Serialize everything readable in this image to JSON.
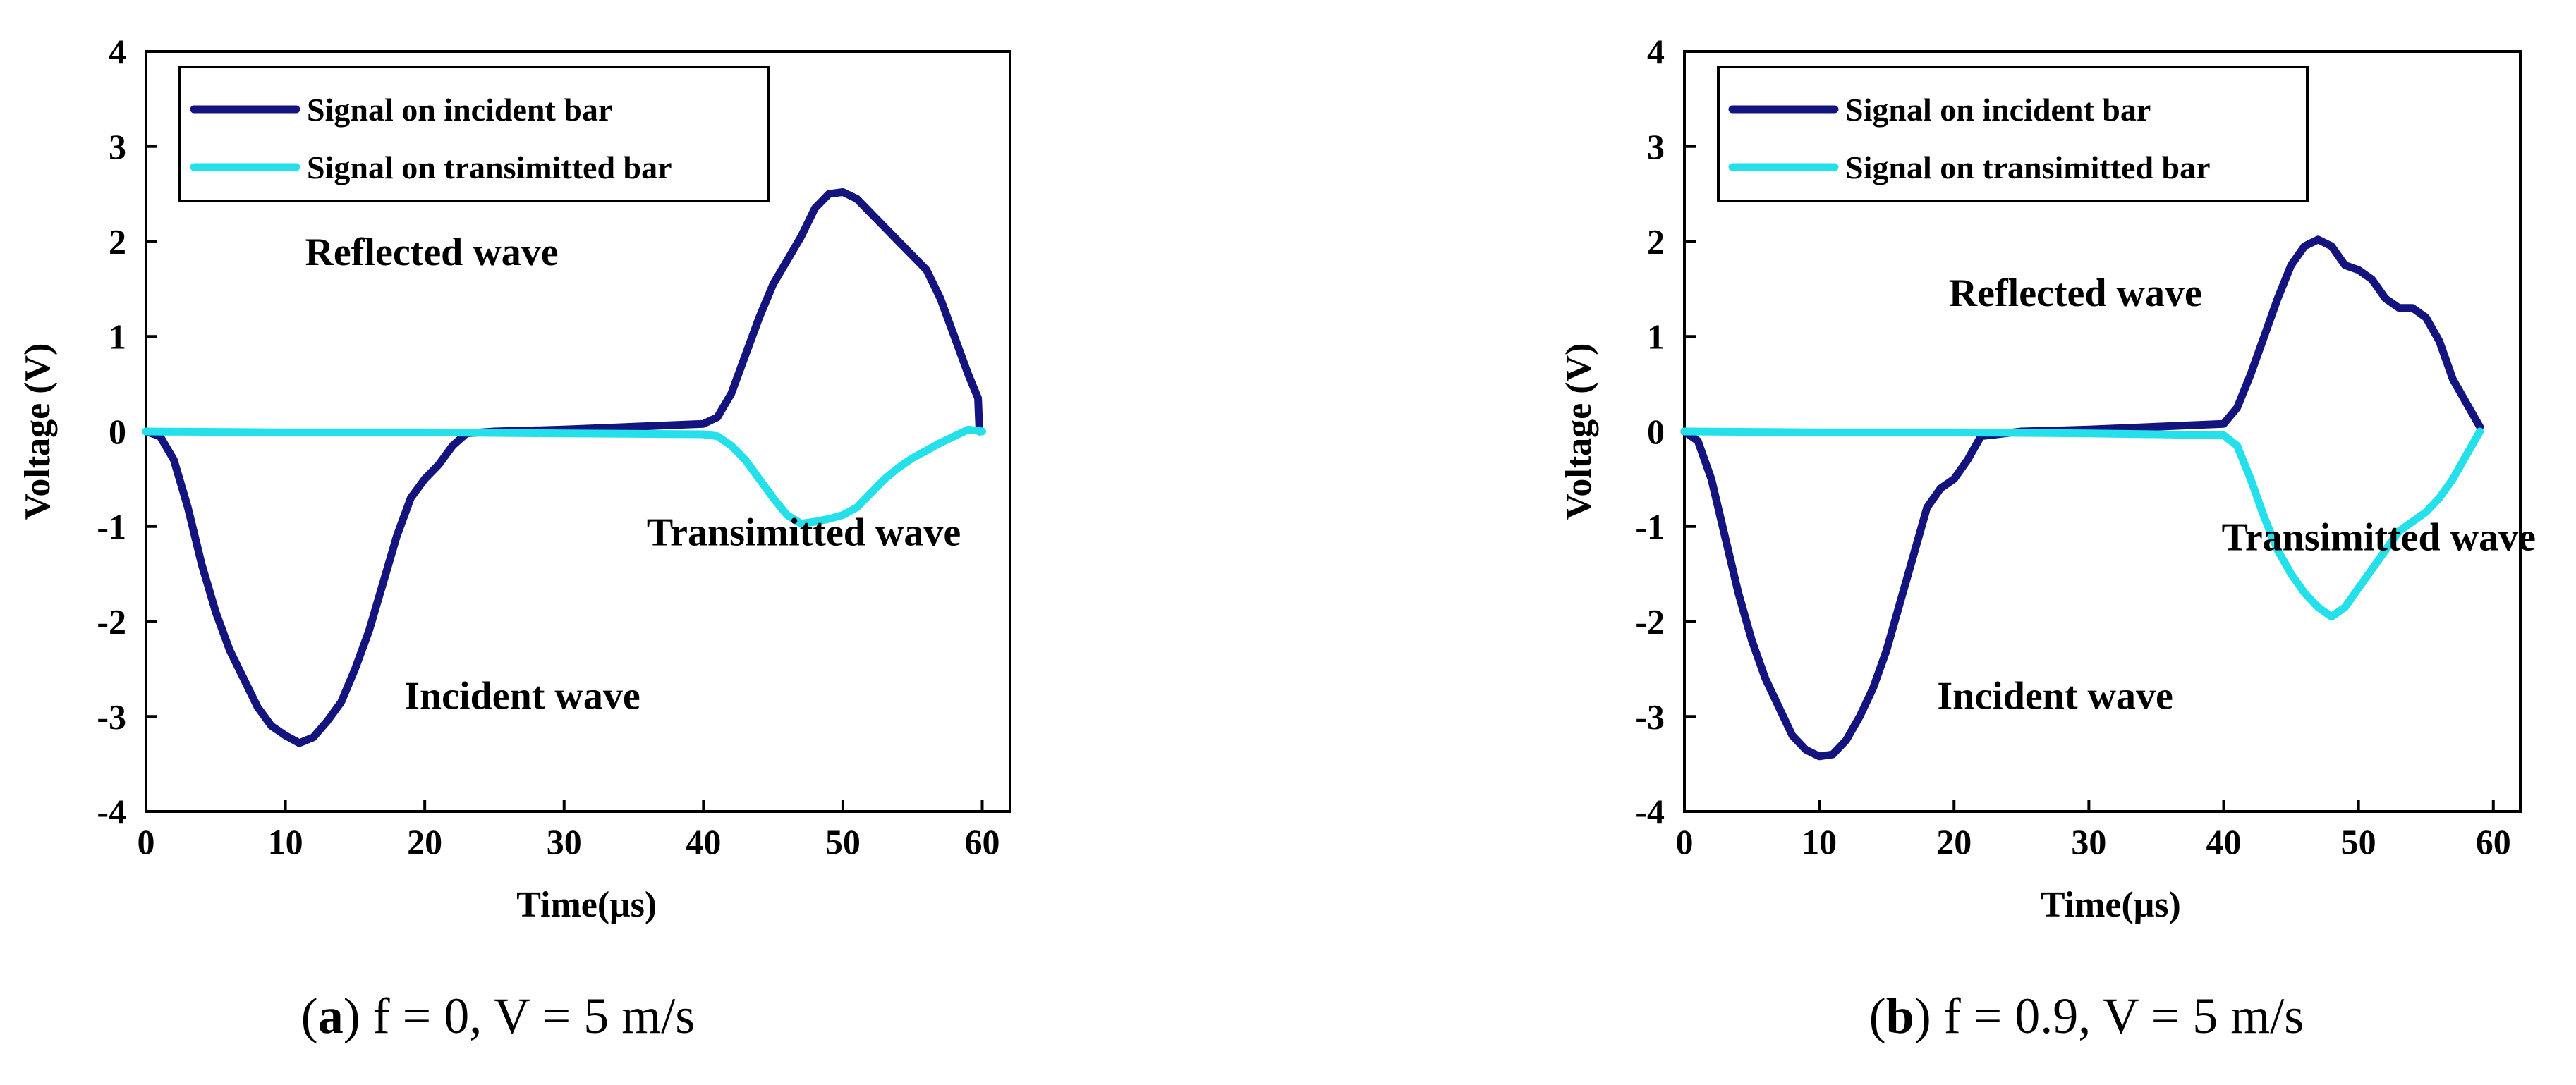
{
  "colors": {
    "incident": "#14147f",
    "transmitted": "#24e0ea",
    "axis": "#000000",
    "background": "#ffffff"
  },
  "chart_data": [
    {
      "id": "a",
      "type": "line",
      "xlabel": "Time(μs)",
      "ylabel": "Voltage (V)",
      "xlim": [
        0,
        62
      ],
      "ylim": [
        -4,
        4
      ],
      "xticks": [
        0,
        10,
        20,
        30,
        40,
        50,
        60
      ],
      "yticks": [
        -4,
        -3,
        -2,
        -1,
        0,
        1,
        2,
        3,
        4
      ],
      "legend_position": "top-left",
      "caption": {
        "open": "(",
        "letter": "a",
        "rest": ") f = 0, V = 5 m/s"
      },
      "series": [
        {
          "name": "Signal on incident bar",
          "color_key": "incident",
          "points": [
            [
              0,
              0
            ],
            [
              1,
              -0.05
            ],
            [
              2,
              -0.3
            ],
            [
              3,
              -0.8
            ],
            [
              4,
              -1.4
            ],
            [
              5,
              -1.9
            ],
            [
              6,
              -2.3
            ],
            [
              7,
              -2.6
            ],
            [
              8,
              -2.9
            ],
            [
              9,
              -3.1
            ],
            [
              10,
              -3.2
            ],
            [
              11,
              -3.28
            ],
            [
              12,
              -3.22
            ],
            [
              13,
              -3.05
            ],
            [
              14,
              -2.85
            ],
            [
              15,
              -2.5
            ],
            [
              16,
              -2.1
            ],
            [
              17,
              -1.6
            ],
            [
              18,
              -1.1
            ],
            [
              19,
              -0.7
            ],
            [
              20,
              -0.5
            ],
            [
              21,
              -0.35
            ],
            [
              22,
              -0.15
            ],
            [
              23,
              -0.02
            ],
            [
              25,
              0.0
            ],
            [
              30,
              0.02
            ],
            [
              35,
              0.05
            ],
            [
              40,
              0.08
            ],
            [
              41,
              0.15
            ],
            [
              42,
              0.4
            ],
            [
              43,
              0.8
            ],
            [
              44,
              1.2
            ],
            [
              45,
              1.55
            ],
            [
              46,
              1.8
            ],
            [
              47,
              2.05
            ],
            [
              48,
              2.35
            ],
            [
              49,
              2.5
            ],
            [
              50,
              2.52
            ],
            [
              51,
              2.45
            ],
            [
              52,
              2.3
            ],
            [
              53,
              2.15
            ],
            [
              54,
              2.0
            ],
            [
              55,
              1.85
            ],
            [
              56,
              1.7
            ],
            [
              57,
              1.4
            ],
            [
              58,
              1.0
            ],
            [
              59,
              0.6
            ],
            [
              59.7,
              0.35
            ],
            [
              59.8,
              0.0
            ]
          ]
        },
        {
          "name": "Signal on transimitted bar",
          "color_key": "transmitted",
          "points": [
            [
              0,
              0
            ],
            [
              10,
              -0.01
            ],
            [
              20,
              -0.01
            ],
            [
              30,
              -0.02
            ],
            [
              40,
              -0.03
            ],
            [
              41,
              -0.05
            ],
            [
              42,
              -0.15
            ],
            [
              43,
              -0.3
            ],
            [
              44,
              -0.5
            ],
            [
              45,
              -0.7
            ],
            [
              46,
              -0.88
            ],
            [
              47,
              -0.97
            ],
            [
              48,
              -0.95
            ],
            [
              49,
              -0.92
            ],
            [
              50,
              -0.88
            ],
            [
              51,
              -0.8
            ],
            [
              52,
              -0.65
            ],
            [
              53,
              -0.5
            ],
            [
              54,
              -0.38
            ],
            [
              55,
              -0.28
            ],
            [
              56,
              -0.2
            ],
            [
              57,
              -0.12
            ],
            [
              58,
              -0.05
            ],
            [
              59,
              0.02
            ],
            [
              60,
              0.0
            ]
          ]
        }
      ],
      "annotations": [
        {
          "text": "Reflected wave",
          "x": 20.5,
          "y": 1.75
        },
        {
          "text": "Transimitted wave",
          "x": 47.2,
          "y": -1.2
        },
        {
          "text": "Incident wave",
          "x": 27,
          "y": -2.92
        }
      ]
    },
    {
      "id": "b",
      "type": "line",
      "xlabel": "Time(μs)",
      "ylabel": "Voltage (V)",
      "xlim": [
        0,
        62
      ],
      "ylim": [
        -4,
        4
      ],
      "xticks": [
        0,
        10,
        20,
        30,
        40,
        50,
        60
      ],
      "yticks": [
        -4,
        -3,
        -2,
        -1,
        0,
        1,
        2,
        3,
        4
      ],
      "legend_position": "top-left",
      "caption": {
        "open": "(",
        "letter": "b",
        "rest": ") f = 0.9, V = 5 m/s"
      },
      "series": [
        {
          "name": "Signal on incident bar",
          "color_key": "incident",
          "points": [
            [
              0,
              0
            ],
            [
              1,
              -0.1
            ],
            [
              2,
              -0.5
            ],
            [
              3,
              -1.1
            ],
            [
              4,
              -1.7
            ],
            [
              5,
              -2.2
            ],
            [
              6,
              -2.6
            ],
            [
              7,
              -2.9
            ],
            [
              8,
              -3.2
            ],
            [
              9,
              -3.35
            ],
            [
              10,
              -3.42
            ],
            [
              11,
              -3.4
            ],
            [
              12,
              -3.25
            ],
            [
              13,
              -3.0
            ],
            [
              14,
              -2.7
            ],
            [
              15,
              -2.3
            ],
            [
              16,
              -1.8
            ],
            [
              17,
              -1.3
            ],
            [
              18,
              -0.8
            ],
            [
              19,
              -0.6
            ],
            [
              20,
              -0.5
            ],
            [
              21,
              -0.3
            ],
            [
              22,
              -0.05
            ],
            [
              25,
              0.0
            ],
            [
              30,
              0.02
            ],
            [
              35,
              0.05
            ],
            [
              40,
              0.08
            ],
            [
              41,
              0.25
            ],
            [
              42,
              0.6
            ],
            [
              43,
              1.0
            ],
            [
              44,
              1.4
            ],
            [
              45,
              1.75
            ],
            [
              46,
              1.95
            ],
            [
              47,
              2.02
            ],
            [
              48,
              1.95
            ],
            [
              49,
              1.75
            ],
            [
              50,
              1.7
            ],
            [
              51,
              1.6
            ],
            [
              52,
              1.4
            ],
            [
              53,
              1.3
            ],
            [
              54,
              1.3
            ],
            [
              55,
              1.2
            ],
            [
              56,
              0.95
            ],
            [
              57,
              0.55
            ],
            [
              58,
              0.3
            ],
            [
              59,
              0.05
            ]
          ]
        },
        {
          "name": "Signal on transimitted bar",
          "color_key": "transmitted",
          "points": [
            [
              0,
              0
            ],
            [
              10,
              -0.01
            ],
            [
              20,
              -0.01
            ],
            [
              30,
              -0.02
            ],
            [
              40,
              -0.04
            ],
            [
              41,
              -0.15
            ],
            [
              42,
              -0.5
            ],
            [
              43,
              -0.9
            ],
            [
              44,
              -1.25
            ],
            [
              45,
              -1.5
            ],
            [
              46,
              -1.7
            ],
            [
              47,
              -1.85
            ],
            [
              48,
              -1.95
            ],
            [
              49,
              -1.85
            ],
            [
              50,
              -1.65
            ],
            [
              51,
              -1.45
            ],
            [
              52,
              -1.25
            ],
            [
              53,
              -1.05
            ],
            [
              54,
              -0.95
            ],
            [
              55,
              -0.85
            ],
            [
              56,
              -0.7
            ],
            [
              57,
              -0.5
            ],
            [
              58,
              -0.25
            ],
            [
              59,
              0.0
            ]
          ]
        }
      ],
      "annotations": [
        {
          "text": "Reflected wave",
          "x": 29,
          "y": 1.32
        },
        {
          "text": "Transimitted wave",
          "x": 51.5,
          "y": -1.25
        },
        {
          "text": "Incident wave",
          "x": 27.5,
          "y": -2.92
        }
      ]
    }
  ]
}
